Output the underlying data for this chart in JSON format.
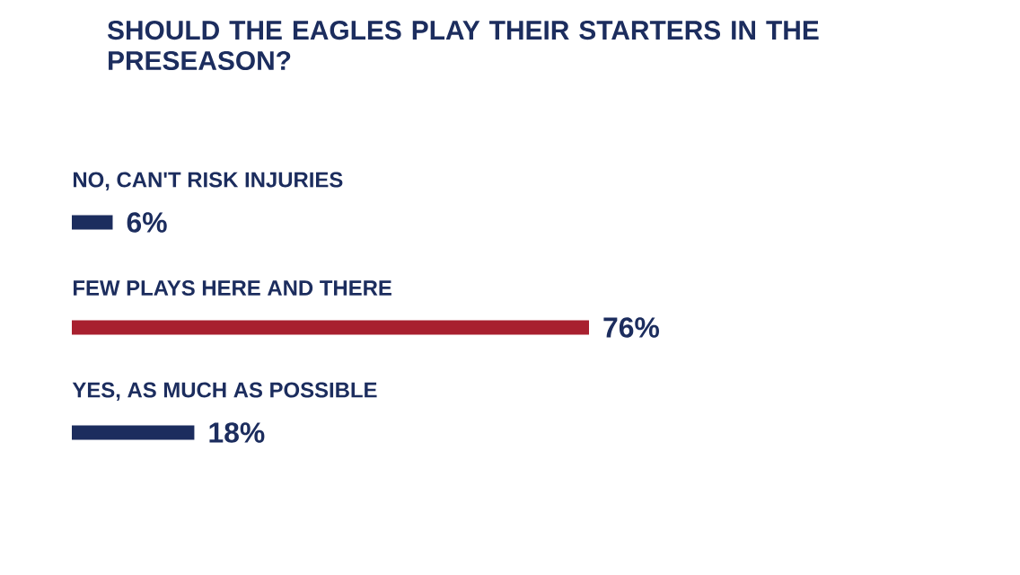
{
  "chart_data": {
    "type": "bar",
    "orientation": "horizontal",
    "title": "SHOULD THE EAGLES PLAY THEIR STARTERS IN THE PRESEASON?",
    "categories": [
      "NO, CAN'T RISK INJURIES",
      "FEW PLAYS HERE AND THERE",
      "YES, AS MUCH AS POSSIBLE"
    ],
    "series": [
      {
        "colors": [
          "#1c2d5e",
          "#a8202f",
          "#1c2d5e"
        ],
        "values": [
          6,
          76,
          18
        ],
        "value_labels": [
          "6%",
          "76%",
          "18%"
        ]
      }
    ]
  }
}
